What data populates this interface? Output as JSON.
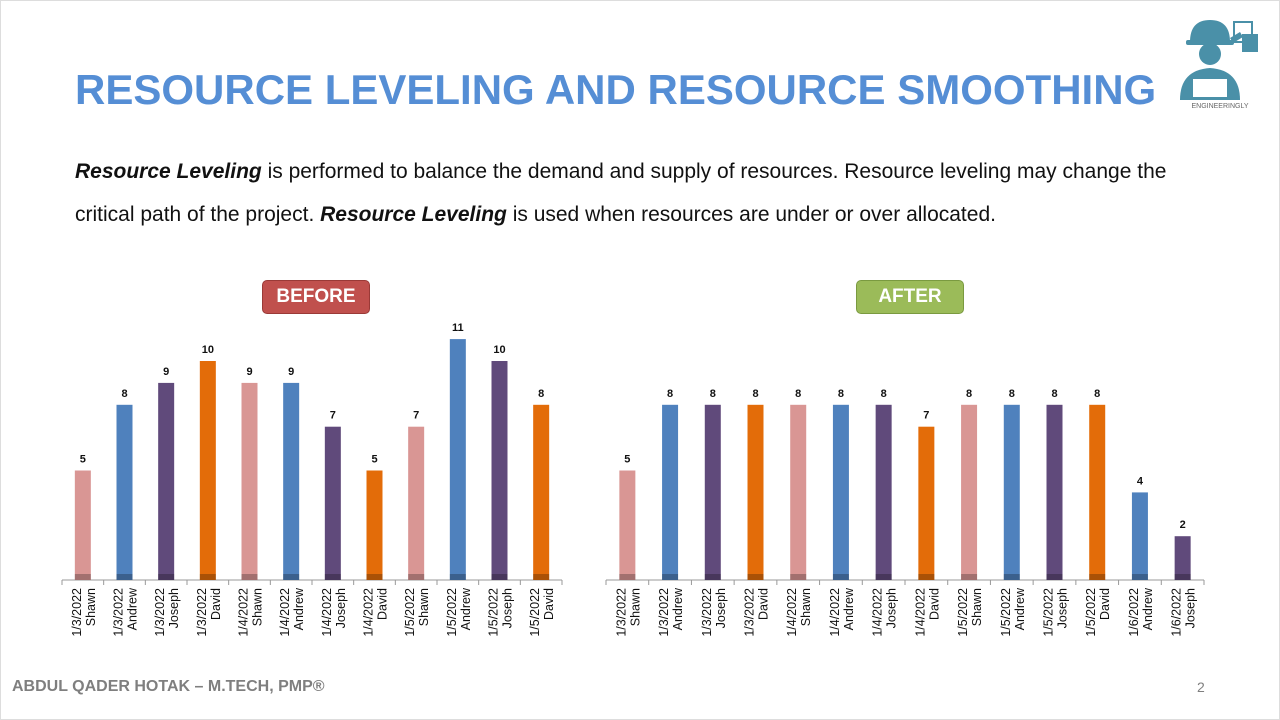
{
  "title": "RESOURCE LEVELING AND RESOURCE SMOOTHING",
  "paragraph": {
    "line1": [
      {
        "t": "Resource Leveling",
        "b": true
      },
      {
        "t": " is performed to balance the demand and supply of resources. Resource leveling may change the",
        "b": false
      }
    ],
    "line2": [
      {
        "t": "critical path of the project. ",
        "b": false
      },
      {
        "t": "Resource Leveling",
        "b": true
      },
      {
        "t": " is used when resources are under or over allocated.",
        "b": false
      }
    ]
  },
  "logo_text": "ENGINEERINGLY",
  "footer": "ABDUL QADER HOTAK – M.TECH, PMP®",
  "page_number": "2",
  "colors": {
    "Shawn": "#d99694",
    "Andrew": "#4f81bd",
    "Joseph": "#604a7b",
    "David": "#e36c09",
    "title": "#558ed5",
    "before_badge": "#c0504d",
    "after_badge": "#9bbb59"
  },
  "chart_data": [
    {
      "type": "bar",
      "title": "BEFORE",
      "ylim": [
        0,
        11
      ],
      "grid": false,
      "categories": [
        [
          "1/3/2022",
          "Shawn"
        ],
        [
          "1/3/2022",
          "Andrew"
        ],
        [
          "1/3/2022",
          "Joseph"
        ],
        [
          "1/3/2022",
          "David"
        ],
        [
          "1/4/2022",
          "Shawn"
        ],
        [
          "1/4/2022",
          "Andrew"
        ],
        [
          "1/4/2022",
          "Joseph"
        ],
        [
          "1/4/2022",
          "David"
        ],
        [
          "1/5/2022",
          "Shawn"
        ],
        [
          "1/5/2022",
          "Andrew"
        ],
        [
          "1/5/2022",
          "Joseph"
        ],
        [
          "1/5/2022",
          "David"
        ]
      ],
      "values": [
        5,
        8,
        9,
        10,
        9,
        9,
        7,
        5,
        7,
        11,
        10,
        8
      ]
    },
    {
      "type": "bar",
      "title": "AFTER",
      "ylim": [
        0,
        11
      ],
      "grid": false,
      "categories": [
        [
          "1/3/2022",
          "Shawn"
        ],
        [
          "1/3/2022",
          "Andrew"
        ],
        [
          "1/3/2022",
          "Joseph"
        ],
        [
          "1/3/2022",
          "David"
        ],
        [
          "1/4/2022",
          "Shawn"
        ],
        [
          "1/4/2022",
          "Andrew"
        ],
        [
          "1/4/2022",
          "Joseph"
        ],
        [
          "1/4/2022",
          "David"
        ],
        [
          "1/5/2022",
          "Shawn"
        ],
        [
          "1/5/2022",
          "Andrew"
        ],
        [
          "1/5/2022",
          "Joseph"
        ],
        [
          "1/5/2022",
          "David"
        ],
        [
          "1/6/2022",
          "Andrew"
        ],
        [
          "1/6/2022",
          "Joseph"
        ]
      ],
      "values": [
        5,
        8,
        8,
        8,
        8,
        8,
        8,
        7,
        8,
        8,
        8,
        8,
        4,
        2
      ]
    }
  ]
}
